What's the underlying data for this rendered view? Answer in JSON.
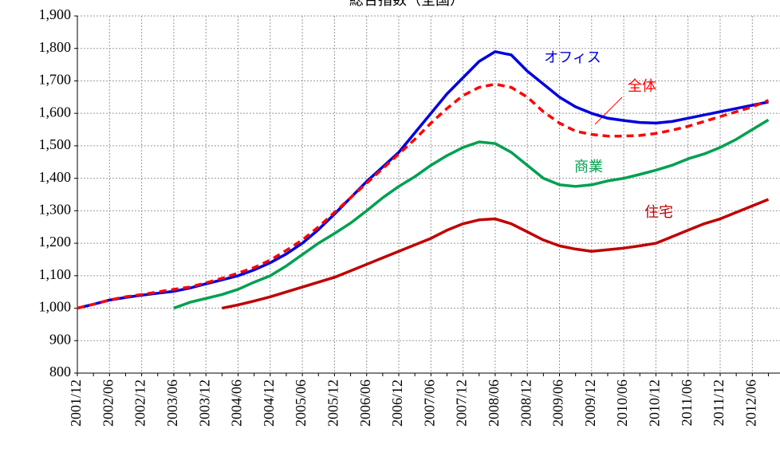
{
  "chart_data": {
    "type": "line",
    "title": "総合指数（全国）",
    "categories": [
      "2001/12",
      null,
      "2002/06",
      null,
      "2002/12",
      null,
      "2003/06",
      null,
      "2003/12",
      null,
      "2004/06",
      null,
      "2004/12",
      null,
      "2005/06",
      null,
      "2005/12",
      null,
      "2006/06",
      null,
      "2006/12",
      null,
      "2007/06",
      null,
      "2007/12",
      null,
      "2008/06",
      null,
      "2008/12",
      null,
      "2009/06",
      null,
      "2009/12",
      null,
      "2010/06",
      null,
      "2010/12",
      null,
      "2011/06",
      null,
      "2011/12",
      null,
      "2012/06",
      null
    ],
    "series": [
      {
        "name": "オフィス",
        "color": "#0000dd",
        "line_style": "solid",
        "values": [
          1000,
          1012,
          1025,
          1033,
          1040,
          1046,
          1052,
          1062,
          1075,
          1087,
          1100,
          1118,
          1140,
          1167,
          1200,
          1242,
          1290,
          1340,
          1390,
          1435,
          1480,
          1540,
          1600,
          1660,
          1710,
          1760,
          1790,
          1780,
          1730,
          1690,
          1650,
          1620,
          1600,
          1585,
          1578,
          1572,
          1570,
          1575,
          1585,
          1595,
          1605,
          1615,
          1625,
          1635
        ]
      },
      {
        "name": "全体",
        "color": "#ff0000",
        "line_style": "dashed",
        "values": [
          1000,
          1012,
          1025,
          1035,
          1042,
          1050,
          1058,
          1065,
          1078,
          1092,
          1108,
          1125,
          1148,
          1178,
          1210,
          1250,
          1295,
          1340,
          1385,
          1430,
          1475,
          1520,
          1570,
          1615,
          1655,
          1680,
          1690,
          1680,
          1650,
          1605,
          1570,
          1545,
          1535,
          1530,
          1530,
          1532,
          1538,
          1548,
          1560,
          1575,
          1590,
          1605,
          1620,
          1640
        ]
      },
      {
        "name": "商業",
        "color": "#00a050",
        "line_style": "solid",
        "values": [
          null,
          null,
          null,
          null,
          null,
          null,
          1000,
          1018,
          1030,
          1042,
          1058,
          1080,
          1100,
          1130,
          1165,
          1200,
          1230,
          1262,
          1300,
          1340,
          1375,
          1405,
          1440,
          1470,
          1495,
          1512,
          1507,
          1480,
          1440,
          1400,
          1380,
          1375,
          1380,
          1392,
          1400,
          1412,
          1425,
          1440,
          1460,
          1475,
          1495,
          1520,
          1550,
          1580
        ]
      },
      {
        "name": "住宅",
        "color": "#c00000",
        "line_style": "solid",
        "values": [
          null,
          null,
          null,
          null,
          null,
          null,
          null,
          null,
          null,
          1000,
          1010,
          1022,
          1035,
          1050,
          1065,
          1080,
          1095,
          1115,
          1135,
          1155,
          1175,
          1195,
          1215,
          1240,
          1260,
          1272,
          1275,
          1260,
          1235,
          1210,
          1192,
          1182,
          1175,
          1180,
          1185,
          1192,
          1200,
          1220,
          1240,
          1260,
          1275,
          1295,
          1315,
          1335
        ]
      }
    ],
    "ylim": [
      800,
      1900
    ],
    "yticks": [
      800,
      900,
      {
        "value": 1000,
        "label": "1,000"
      },
      {
        "value": 1100,
        "label": "1,100"
      },
      {
        "value": 1200,
        "label": "1,200"
      },
      {
        "value": 1300,
        "label": "1,300"
      },
      {
        "value": 1400,
        "label": "1,400"
      },
      {
        "value": 1500,
        "label": "1,500"
      },
      {
        "value": 1600,
        "label": "1,600"
      },
      {
        "value": 1700,
        "label": "1,700"
      },
      {
        "value": 1800,
        "label": "1,800"
      },
      {
        "value": 1900,
        "label": "1,900"
      }
    ],
    "grid": true
  }
}
